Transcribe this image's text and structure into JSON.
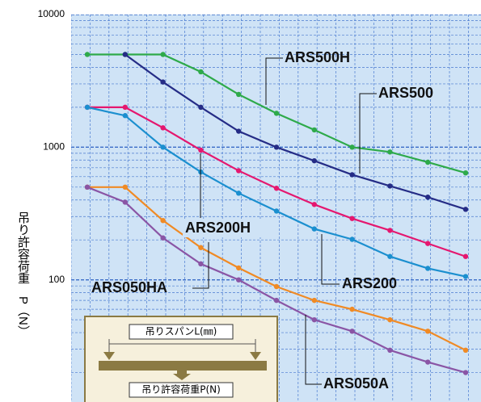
{
  "chart_data": {
    "type": "line",
    "y_label": "吊り許容荷重　P（N）",
    "categories": [
      null,
      null,
      null,
      null,
      null,
      null,
      null,
      null,
      null,
      null,
      null
    ],
    "log_y": true,
    "grid": true,
    "ylim": [
      12,
      10000
    ],
    "yticks": [
      100,
      1000,
      10000
    ],
    "series": [
      {
        "name": "ARS500H",
        "color": "#2eaa4a",
        "values": [
          5000,
          5000,
          5000,
          3700,
          2500,
          1800,
          1350,
          1000,
          920,
          770,
          640
        ]
      },
      {
        "name": "ARS500",
        "color": "#252c86",
        "values": [
          null,
          5000,
          3100,
          2000,
          1320,
          1000,
          790,
          620,
          510,
          420,
          340
        ]
      },
      {
        "name": "ARS200H",
        "color": "#e5176f",
        "values": [
          2000,
          2000,
          1400,
          950,
          665,
          490,
          370,
          290,
          236,
          188,
          150
        ]
      },
      {
        "name": "ARS200",
        "color": "#1b8fcf",
        "values": [
          2000,
          1730,
          1000,
          650,
          450,
          330,
          242,
          202,
          150,
          122,
          106
        ]
      },
      {
        "name": "ARS050HA",
        "color": "#f08a24",
        "values": [
          500,
          500,
          280,
          175,
          123,
          89,
          70,
          60,
          50,
          41,
          29.5
        ]
      },
      {
        "name": "ARS050A",
        "color": "#8a55a5",
        "values": [
          500,
          385,
          207,
          132,
          100,
          70,
          50,
          41,
          29.5,
          24,
          20
        ]
      }
    ],
    "inset": {
      "span_label": "吊りスパンL(㎜)",
      "load_label": "吊り許容荷重P(N)"
    }
  }
}
